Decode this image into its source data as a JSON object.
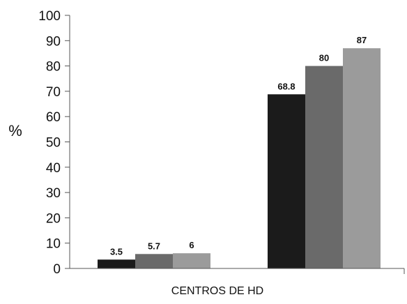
{
  "chart_data": {
    "type": "bar",
    "ylabel": "%",
    "xlabel": "CENTROS DE HD",
    "ylim": [
      0,
      100
    ],
    "yticks": [
      0,
      10,
      20,
      30,
      40,
      50,
      60,
      70,
      80,
      90,
      100
    ],
    "grid": false,
    "legend": "none",
    "groups": 2,
    "series": [
      {
        "values": [
          3.5,
          68.8
        ],
        "color": "#1b1b1b"
      },
      {
        "values": [
          5.7,
          80
        ],
        "color": "#6a6a6a"
      },
      {
        "values": [
          6,
          87
        ],
        "color": "#9b9b9b"
      }
    ]
  }
}
